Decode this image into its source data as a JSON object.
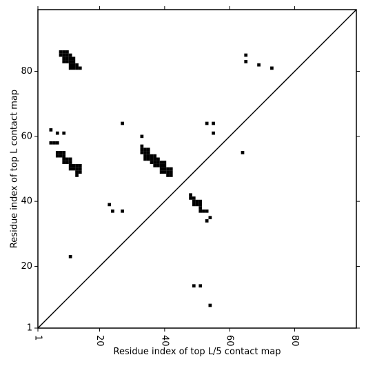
{
  "chart_data": {
    "type": "heatmap",
    "title": "",
    "xlabel": "Residue index of top L/5 contact map",
    "ylabel": "Residue index of top L contact map",
    "xlim": [
      1,
      99
    ],
    "ylim": [
      1,
      99
    ],
    "x_ticks": [
      1,
      20,
      40,
      60,
      80
    ],
    "y_ticks": [
      1,
      20,
      40,
      60,
      80
    ],
    "x_tick_labels": [
      "1",
      "20",
      "40",
      "60",
      "80"
    ],
    "y_tick_labels": [
      "1",
      "20",
      "40",
      "60",
      "80"
    ],
    "x_tick_rotation": "vertical",
    "diagonal_line": true,
    "grid": false,
    "legend": "none",
    "cell_color": "#000000",
    "cells": [
      [
        8,
        86
      ],
      [
        9,
        86
      ],
      [
        10,
        86
      ],
      [
        8,
        85
      ],
      [
        9,
        85
      ],
      [
        10,
        85
      ],
      [
        11,
        85
      ],
      [
        9,
        84
      ],
      [
        10,
        84
      ],
      [
        11,
        84
      ],
      [
        12,
        84
      ],
      [
        9,
        83
      ],
      [
        10,
        83
      ],
      [
        11,
        83
      ],
      [
        12,
        83
      ],
      [
        11,
        82
      ],
      [
        12,
        82
      ],
      [
        13,
        82
      ],
      [
        11,
        81
      ],
      [
        12,
        81
      ],
      [
        13,
        81
      ],
      [
        14,
        81
      ],
      [
        5,
        62
      ],
      [
        7,
        61
      ],
      [
        9,
        61
      ],
      [
        27,
        64
      ],
      [
        5,
        58
      ],
      [
        6,
        58
      ],
      [
        7,
        58
      ],
      [
        7,
        55
      ],
      [
        8,
        55
      ],
      [
        9,
        55
      ],
      [
        7,
        54
      ],
      [
        8,
        54
      ],
      [
        9,
        54
      ],
      [
        9,
        53
      ],
      [
        10,
        53
      ],
      [
        11,
        53
      ],
      [
        9,
        52
      ],
      [
        10,
        52
      ],
      [
        11,
        52
      ],
      [
        11,
        51
      ],
      [
        12,
        51
      ],
      [
        13,
        51
      ],
      [
        14,
        51
      ],
      [
        11,
        50
      ],
      [
        12,
        50
      ],
      [
        13,
        50
      ],
      [
        14,
        50
      ],
      [
        13,
        49
      ],
      [
        14,
        49
      ],
      [
        13,
        48
      ],
      [
        33,
        60
      ],
      [
        33,
        57
      ],
      [
        33,
        56
      ],
      [
        34,
        56
      ],
      [
        35,
        56
      ],
      [
        33,
        55
      ],
      [
        34,
        55
      ],
      [
        35,
        55
      ],
      [
        34,
        54
      ],
      [
        35,
        54
      ],
      [
        36,
        54
      ],
      [
        37,
        54
      ],
      [
        34,
        53
      ],
      [
        35,
        53
      ],
      [
        36,
        53
      ],
      [
        37,
        53
      ],
      [
        38,
        53
      ],
      [
        36,
        52
      ],
      [
        37,
        52
      ],
      [
        38,
        52
      ],
      [
        39,
        52
      ],
      [
        40,
        52
      ],
      [
        37,
        51
      ],
      [
        38,
        51
      ],
      [
        39,
        51
      ],
      [
        40,
        51
      ],
      [
        39,
        50
      ],
      [
        40,
        50
      ],
      [
        41,
        50
      ],
      [
        42,
        50
      ],
      [
        39,
        49
      ],
      [
        40,
        49
      ],
      [
        41,
        49
      ],
      [
        42,
        49
      ],
      [
        41,
        48
      ],
      [
        42,
        48
      ],
      [
        23,
        39
      ],
      [
        24,
        37
      ],
      [
        27,
        37
      ],
      [
        11,
        23
      ],
      [
        53,
        64
      ],
      [
        55,
        64
      ],
      [
        55,
        61
      ],
      [
        64,
        55
      ],
      [
        65,
        85
      ],
      [
        65,
        83
      ],
      [
        69,
        82
      ],
      [
        73,
        81
      ],
      [
        48,
        42
      ],
      [
        48,
        41
      ],
      [
        49,
        41
      ],
      [
        49,
        40
      ],
      [
        50,
        40
      ],
      [
        51,
        40
      ],
      [
        49,
        39
      ],
      [
        50,
        39
      ],
      [
        51,
        39
      ],
      [
        51,
        38
      ],
      [
        51,
        37
      ],
      [
        52,
        37
      ],
      [
        53,
        37
      ],
      [
        53,
        34
      ],
      [
        54,
        35
      ],
      [
        49,
        14
      ],
      [
        51,
        14
      ],
      [
        54,
        8
      ]
    ]
  }
}
